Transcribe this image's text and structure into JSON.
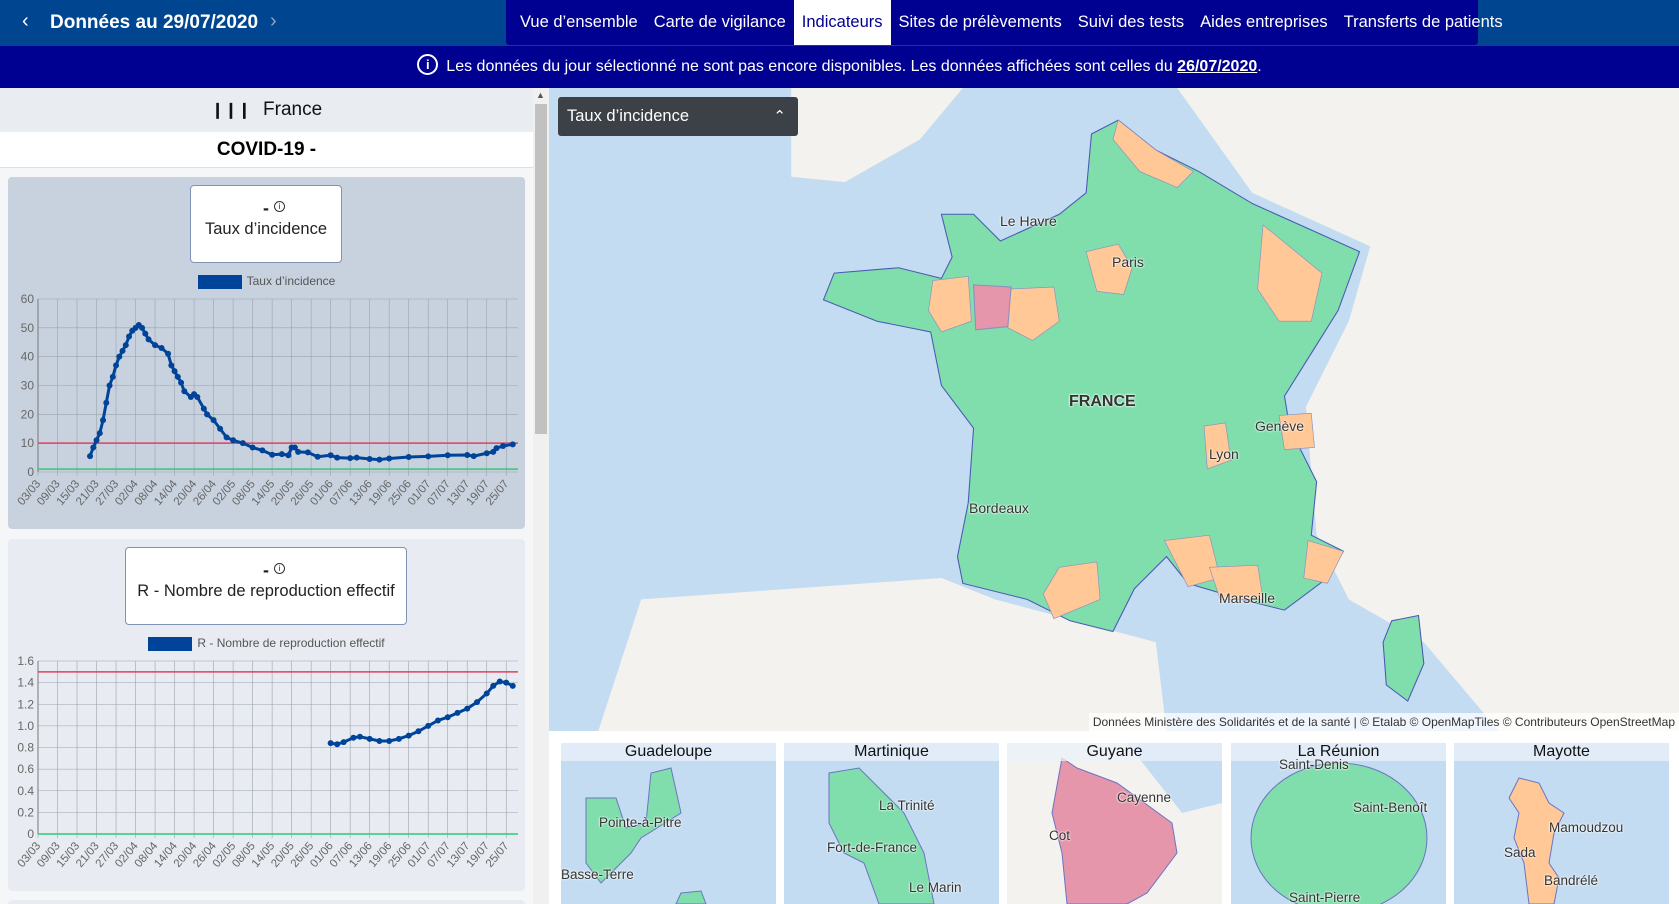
{
  "header": {
    "title": "Données au 29/07/2020",
    "prev_icon": "chevron-left-icon",
    "next_icon": "chevron-right-icon"
  },
  "nav": {
    "tabs": [
      {
        "label": "Vue d’ensemble"
      },
      {
        "label": "Carte de vigilance"
      },
      {
        "label": "Indicateurs",
        "active": true
      },
      {
        "label": "Sites de prélèvements"
      },
      {
        "label": "Suivi des tests"
      },
      {
        "label": "Aides entreprises"
      },
      {
        "label": "Transferts de patients"
      }
    ]
  },
  "banner": {
    "text": "Les données du jour sélectionné ne sont pas encore disponibles. Les données affichées sont celles du ",
    "date": "26/07/2020",
    "end": "."
  },
  "sidebar": {
    "region": "France",
    "disease": "COVID-19 -",
    "cards": [
      {
        "value": "-",
        "label": "Taux d’incidence",
        "legend": "Taux d’incidence"
      },
      {
        "value": "-",
        "label": "R - Nombre de reproduction effectif",
        "legend": "R - Nombre de reproduction effectif"
      }
    ]
  },
  "colors": {
    "series": "#00449a",
    "threshold_high": "#e0405e",
    "threshold_low": "#2ecc71",
    "green": "#80deac",
    "orange": "#ffc896",
    "pink": "#e696ab"
  },
  "chart_data": [
    {
      "type": "line",
      "title": "Taux d’incidence",
      "ylim": [
        0,
        60
      ],
      "yticks": [
        0,
        10,
        20,
        30,
        40,
        50,
        60
      ],
      "xticks": [
        "03/03",
        "09/03",
        "15/03",
        "21/03",
        "27/03",
        "02/04",
        "08/04",
        "14/04",
        "20/04",
        "26/04",
        "02/05",
        "08/05",
        "14/05",
        "20/05",
        "26/05",
        "01/06",
        "07/06",
        "13/06",
        "19/06",
        "25/06",
        "01/07",
        "07/07",
        "13/07",
        "19/07",
        "25/07"
      ],
      "thresholds": [
        10,
        1
      ],
      "series": [
        {
          "name": "Taux d’incidence",
          "points": [
            [
              "19/03",
              5.5
            ],
            [
              "20/03",
              8.5
            ],
            [
              "21/03",
              11
            ],
            [
              "22/03",
              13.5
            ],
            [
              "23/03",
              18
            ],
            [
              "24/03",
              24
            ],
            [
              "25/03",
              30
            ],
            [
              "26/03",
              33
            ],
            [
              "27/03",
              37
            ],
            [
              "28/03",
              40
            ],
            [
              "29/03",
              42
            ],
            [
              "30/03",
              44
            ],
            [
              "31/03",
              47
            ],
            [
              "01/04",
              49
            ],
            [
              "02/04",
              50
            ],
            [
              "03/04",
              51
            ],
            [
              "04/04",
              50
            ],
            [
              "05/04",
              48
            ],
            [
              "06/04",
              46
            ],
            [
              "08/04",
              44
            ],
            [
              "10/04",
              43
            ],
            [
              "12/04",
              41
            ],
            [
              "13/04",
              37
            ],
            [
              "14/04",
              35
            ],
            [
              "15/04",
              33
            ],
            [
              "16/04",
              31
            ],
            [
              "17/04",
              28
            ],
            [
              "19/04",
              26
            ],
            [
              "20/04",
              27
            ],
            [
              "21/04",
              26
            ],
            [
              "23/04",
              22
            ],
            [
              "24/04",
              20
            ],
            [
              "26/04",
              18
            ],
            [
              "28/04",
              15
            ],
            [
              "30/04",
              12
            ],
            [
              "02/05",
              11
            ],
            [
              "05/05",
              10
            ],
            [
              "08/05",
              8.5
            ],
            [
              "11/05",
              7.5
            ],
            [
              "14/05",
              6
            ],
            [
              "17/05",
              6.2
            ],
            [
              "19/05",
              5.8
            ],
            [
              "20/05",
              8.5
            ],
            [
              "21/05",
              8.5
            ],
            [
              "22/05",
              7
            ],
            [
              "25/05",
              6.8
            ],
            [
              "28/05",
              5.3
            ],
            [
              "01/06",
              5.8
            ],
            [
              "03/06",
              5
            ],
            [
              "07/06",
              4.8
            ],
            [
              "09/06",
              5
            ],
            [
              "13/06",
              4.5
            ],
            [
              "16/06",
              4.3
            ],
            [
              "19/06",
              4.7
            ],
            [
              "25/06",
              5.2
            ],
            [
              "01/07",
              5.4
            ],
            [
              "07/07",
              5.8
            ],
            [
              "13/07",
              5.9
            ],
            [
              "15/07",
              5.5
            ],
            [
              "19/07",
              6.5
            ],
            [
              "21/07",
              7
            ],
            [
              "22/07",
              8.3
            ],
            [
              "24/07",
              9
            ],
            [
              "27/07",
              9.6
            ]
          ]
        }
      ]
    },
    {
      "type": "line",
      "title": "R - Nombre de reproduction effectif",
      "ylim": [
        0,
        1.6
      ],
      "yticks": [
        "0",
        "0.2",
        "0.4",
        "0.6",
        "0.8",
        "1.0",
        "1.2",
        "1.4",
        "1.6"
      ],
      "xticks": [
        "03/03",
        "09/03",
        "15/03",
        "21/03",
        "27/03",
        "02/04",
        "08/04",
        "14/04",
        "20/04",
        "26/04",
        "02/05",
        "08/05",
        "14/05",
        "20/05",
        "26/05",
        "01/06",
        "07/06",
        "13/06",
        "19/06",
        "25/06",
        "01/07",
        "07/07",
        "13/07",
        "19/07",
        "25/07"
      ],
      "thresholds": [
        1.5,
        0
      ],
      "series": [
        {
          "name": "R - Nombre de reproduction effectif",
          "points": [
            [
              "01/06",
              0.84
            ],
            [
              "03/06",
              0.83
            ],
            [
              "05/06",
              0.85
            ],
            [
              "08/06",
              0.89
            ],
            [
              "10/06",
              0.9
            ],
            [
              "13/06",
              0.88
            ],
            [
              "16/06",
              0.86
            ],
            [
              "19/06",
              0.86
            ],
            [
              "22/06",
              0.88
            ],
            [
              "25/06",
              0.91
            ],
            [
              "28/06",
              0.95
            ],
            [
              "01/07",
              1.0
            ],
            [
              "04/07",
              1.05
            ],
            [
              "07/07",
              1.08
            ],
            [
              "10/07",
              1.12
            ],
            [
              "13/07",
              1.16
            ],
            [
              "16/07",
              1.22
            ],
            [
              "19/07",
              1.3
            ],
            [
              "21/07",
              1.37
            ],
            [
              "23/07",
              1.41
            ],
            [
              "25/07",
              1.4
            ],
            [
              "27/07",
              1.37
            ]
          ]
        }
      ]
    }
  ],
  "map": {
    "indicator": "Taux d’incidence",
    "labels": [
      "Le Havre",
      "Paris",
      "FRANCE",
      "Genève",
      "Lyon",
      "Bordeaux",
      "Marseille"
    ],
    "attribution": "Données Ministère des Solidarités et de la santé | © Etalab © OpenMapTiles © Contributeurs OpenStreetMap"
  },
  "overseas": [
    {
      "name": "Guadeloupe",
      "cities": [
        "Pointe-à-Pitre",
        "Basse-Terre"
      ]
    },
    {
      "name": "Martinique",
      "cities": [
        "La Trinité",
        "Fort-de-France",
        "Le Marin"
      ]
    },
    {
      "name": "Guyane",
      "cities": [
        "Cayenne",
        "Cot"
      ]
    },
    {
      "name": "La Réunion",
      "cities": [
        "Saint-Denis",
        "Saint-Benoît",
        "Saint-Pierre"
      ]
    },
    {
      "name": "Mayotte",
      "cities": [
        "Mamoudzou",
        "Sada",
        "Bandrélé"
      ]
    }
  ]
}
